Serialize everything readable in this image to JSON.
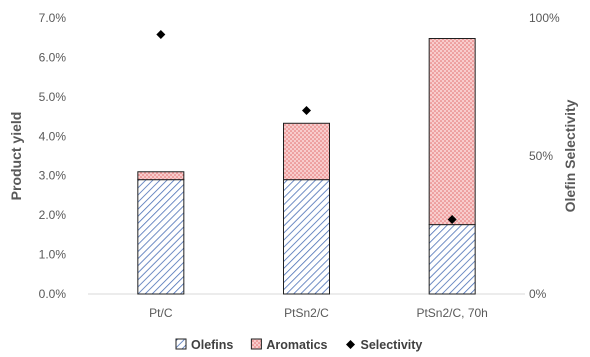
{
  "chart_data": {
    "type": "bar",
    "stacked": true,
    "categories": [
      "Pt/C",
      "PtSn2/C",
      "PtSn2/C, 70h"
    ],
    "series": [
      {
        "name": "Olefins",
        "axis": "left",
        "values": [
          0.029,
          0.029,
          0.0176
        ],
        "pattern": "diagonal-hatch",
        "color": "#4a6fb5"
      },
      {
        "name": "Aromatics",
        "axis": "left",
        "values": [
          0.002,
          0.0143,
          0.0472
        ],
        "pattern": "dots",
        "color": "#e06666",
        "fill": "#f8cccc"
      },
      {
        "name": "Selectivity",
        "axis": "right",
        "type": "scatter",
        "marker": "diamond",
        "values": [
          0.94,
          0.665,
          0.27
        ],
        "color": "#000000"
      }
    ],
    "ylabel": "Product yield",
    "ylabel_right": "Olefin Selectivity",
    "ylim": [
      0,
      0.07
    ],
    "ylim_right": [
      0,
      1
    ],
    "y_ticks": [
      "0.0%",
      "1.0%",
      "2.0%",
      "3.0%",
      "4.0%",
      "5.0%",
      "6.0%",
      "7.0%"
    ],
    "y_right_ticks": [
      "0%",
      "50%",
      "100%"
    ],
    "grid": false,
    "legend_position": "bottom"
  }
}
